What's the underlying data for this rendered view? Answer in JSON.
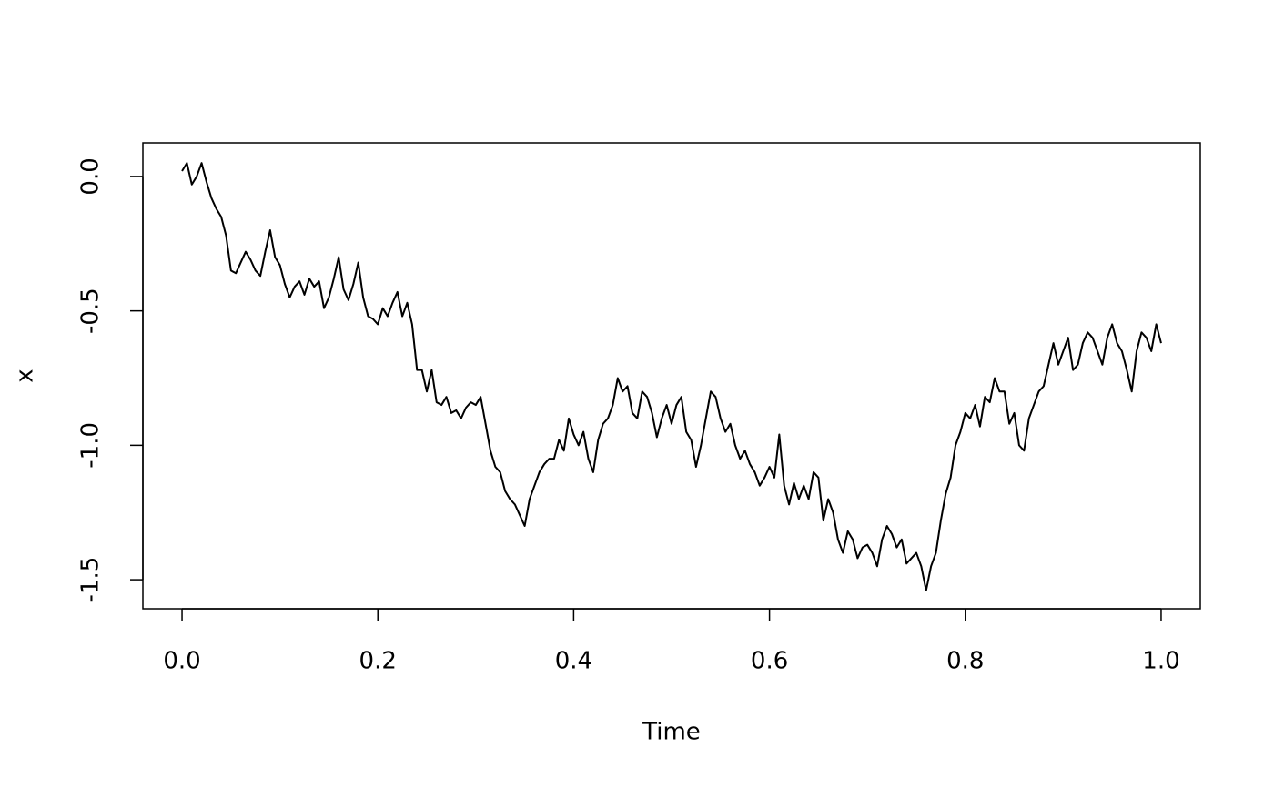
{
  "chart_data": {
    "type": "line",
    "x_label": "Time",
    "y_label": "x",
    "x": [
      0,
      0.005,
      0.01,
      0.015,
      0.02,
      0.025,
      0.03,
      0.035,
      0.04,
      0.045,
      0.05,
      0.055,
      0.06,
      0.065,
      0.07,
      0.075,
      0.08,
      0.085,
      0.09,
      0.095,
      0.1,
      0.105,
      0.11,
      0.115,
      0.12,
      0.125,
      0.13,
      0.135,
      0.14,
      0.145,
      0.15,
      0.155,
      0.16,
      0.165,
      0.17,
      0.175,
      0.18,
      0.185,
      0.19,
      0.195,
      0.2,
      0.205,
      0.21,
      0.215,
      0.22,
      0.225,
      0.23,
      0.235,
      0.24,
      0.245,
      0.25,
      0.255,
      0.26,
      0.265,
      0.27,
      0.275,
      0.28,
      0.285,
      0.29,
      0.295,
      0.3,
      0.305,
      0.31,
      0.315,
      0.32,
      0.325,
      0.33,
      0.335,
      0.34,
      0.345,
      0.35,
      0.355,
      0.36,
      0.365,
      0.37,
      0.375,
      0.38,
      0.385,
      0.39,
      0.395,
      0.4,
      0.405,
      0.41,
      0.415,
      0.42,
      0.425,
      0.43,
      0.435,
      0.44,
      0.445,
      0.45,
      0.455,
      0.46,
      0.465,
      0.47,
      0.475,
      0.48,
      0.485,
      0.49,
      0.495,
      0.5,
      0.505,
      0.51,
      0.515,
      0.52,
      0.525,
      0.53,
      0.535,
      0.54,
      0.545,
      0.55,
      0.555,
      0.56,
      0.565,
      0.57,
      0.575,
      0.58,
      0.585,
      0.59,
      0.595,
      0.6,
      0.605,
      0.61,
      0.615,
      0.62,
      0.625,
      0.63,
      0.635,
      0.64,
      0.645,
      0.65,
      0.655,
      0.66,
      0.665,
      0.67,
      0.675,
      0.68,
      0.685,
      0.69,
      0.695,
      0.7,
      0.705,
      0.71,
      0.715,
      0.72,
      0.725,
      0.73,
      0.735,
      0.74,
      0.745,
      0.75,
      0.755,
      0.76,
      0.765,
      0.77,
      0.775,
      0.78,
      0.785,
      0.79,
      0.795,
      0.8,
      0.805,
      0.81,
      0.815,
      0.82,
      0.825,
      0.83,
      0.835,
      0.84,
      0.845,
      0.85,
      0.855,
      0.86,
      0.865,
      0.87,
      0.875,
      0.88,
      0.885,
      0.89,
      0.895,
      0.9,
      0.905,
      0.91,
      0.915,
      0.92,
      0.925,
      0.93,
      0.935,
      0.94,
      0.945,
      0.95,
      0.955,
      0.96,
      0.965,
      0.97,
      0.975,
      0.98,
      0.985,
      0.99,
      0.995,
      1
    ],
    "series": [
      {
        "color": "#000000",
        "values": [
          0.02,
          0.05,
          -0.03,
          0.0,
          0.05,
          -0.02,
          -0.08,
          -0.12,
          -0.15,
          -0.22,
          -0.35,
          -0.36,
          -0.32,
          -0.28,
          -0.31,
          -0.35,
          -0.37,
          -0.28,
          -0.2,
          -0.3,
          -0.33,
          -0.4,
          -0.45,
          -0.41,
          -0.39,
          -0.44,
          -0.38,
          -0.41,
          -0.39,
          -0.49,
          -0.45,
          -0.38,
          -0.3,
          -0.42,
          -0.46,
          -0.4,
          -0.32,
          -0.45,
          -0.52,
          -0.53,
          -0.55,
          -0.49,
          -0.52,
          -0.47,
          -0.43,
          -0.52,
          -0.47,
          -0.55,
          -0.72,
          -0.72,
          -0.8,
          -0.72,
          -0.84,
          -0.85,
          -0.82,
          -0.88,
          -0.87,
          -0.9,
          -0.86,
          -0.84,
          -0.85,
          -0.82,
          -0.92,
          -1.02,
          -1.08,
          -1.1,
          -1.17,
          -1.2,
          -1.22,
          -1.26,
          -1.3,
          -1.2,
          -1.15,
          -1.1,
          -1.07,
          -1.05,
          -1.05,
          -0.98,
          -1.02,
          -0.9,
          -0.96,
          -1.0,
          -0.95,
          -1.05,
          -1.1,
          -0.98,
          -0.92,
          -0.9,
          -0.85,
          -0.75,
          -0.8,
          -0.78,
          -0.88,
          -0.9,
          -0.8,
          -0.82,
          -0.88,
          -0.97,
          -0.9,
          -0.85,
          -0.92,
          -0.85,
          -0.82,
          -0.95,
          -0.98,
          -1.08,
          -1.0,
          -0.9,
          -0.8,
          -0.82,
          -0.9,
          -0.95,
          -0.92,
          -1.0,
          -1.05,
          -1.02,
          -1.07,
          -1.1,
          -1.15,
          -1.12,
          -1.08,
          -1.12,
          -0.96,
          -1.15,
          -1.22,
          -1.14,
          -1.2,
          -1.15,
          -1.2,
          -1.1,
          -1.12,
          -1.28,
          -1.2,
          -1.25,
          -1.35,
          -1.4,
          -1.32,
          -1.35,
          -1.42,
          -1.38,
          -1.37,
          -1.4,
          -1.45,
          -1.35,
          -1.3,
          -1.33,
          -1.38,
          -1.35,
          -1.44,
          -1.42,
          -1.4,
          -1.45,
          -1.54,
          -1.45,
          -1.4,
          -1.28,
          -1.18,
          -1.12,
          -1.0,
          -0.95,
          -0.88,
          -0.9,
          -0.85,
          -0.93,
          -0.82,
          -0.84,
          -0.75,
          -0.8,
          -0.8,
          -0.92,
          -0.88,
          -1.0,
          -1.02,
          -0.9,
          -0.85,
          -0.8,
          -0.78,
          -0.7,
          -0.62,
          -0.7,
          -0.65,
          -0.6,
          -0.72,
          -0.7,
          -0.62,
          -0.58,
          -0.6,
          -0.65,
          -0.7,
          -0.6,
          -0.55,
          -0.62,
          -0.65,
          -0.72,
          -0.8,
          -0.65,
          -0.58,
          -0.6,
          -0.65,
          -0.55,
          -0.62
        ]
      }
    ],
    "xlim": [
      -0.04,
      1.04
    ],
    "ylim": [
      -1.608,
      0.125
    ],
    "xticks": [
      {
        "value": 0,
        "label": "0.0"
      },
      0.2,
      0.4,
      0.6,
      0.8,
      {
        "value": 1,
        "label": "1.0"
      }
    ],
    "yticks": [
      {
        "value": 0,
        "label": "0.0"
      },
      -0.5,
      {
        "value": -1,
        "label": "-1.0"
      },
      -1.5
    ]
  }
}
